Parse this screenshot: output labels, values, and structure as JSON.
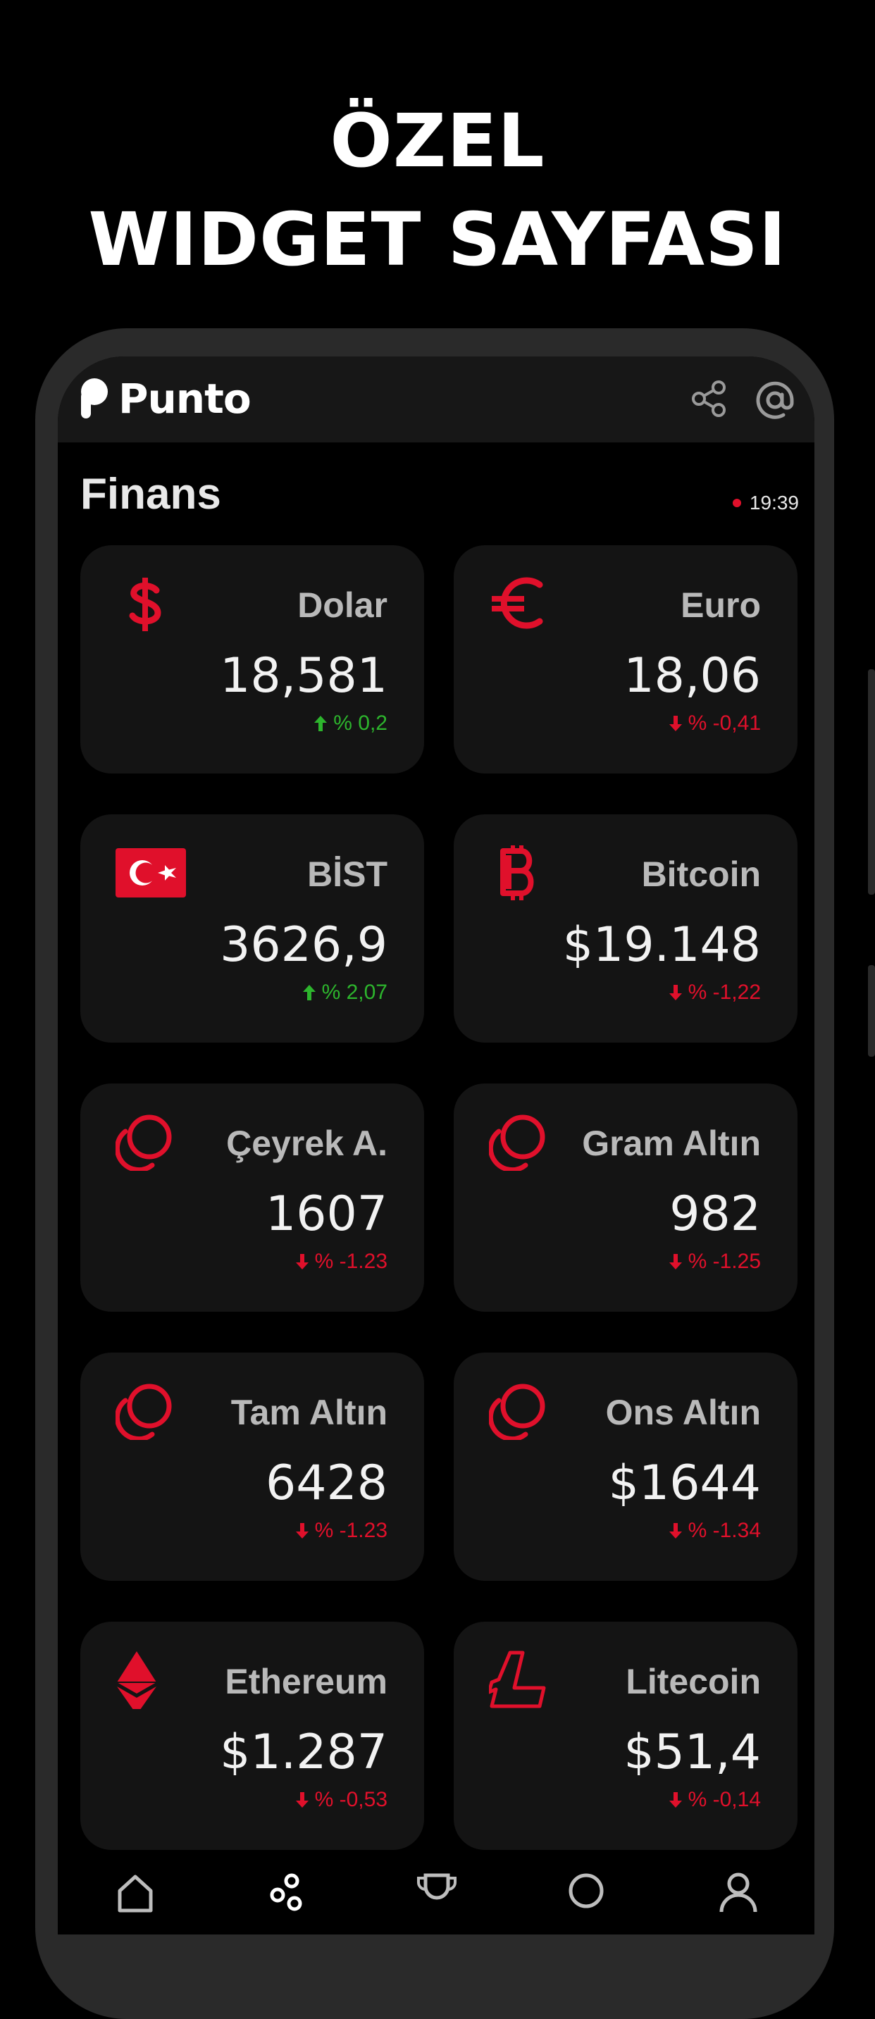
{
  "headline": {
    "line1": "ÖZEL",
    "line2": "WIDGET SAYFASI"
  },
  "app": {
    "name": "Punto",
    "icons": [
      "share-icon",
      "at-sign-icon"
    ]
  },
  "section": {
    "title": "Finans",
    "time": "19:39"
  },
  "colors": {
    "accent": "#e0102b",
    "up": "#2db52d",
    "down": "#e0102b",
    "card_bg": "#141414",
    "label": "#b9b9b9"
  },
  "cards": [
    {
      "name": "Dolar",
      "value": "18,581",
      "change": "% 0,2",
      "direction": "up",
      "icon": "dollar-icon"
    },
    {
      "name": "Euro",
      "value": "18,06",
      "change": "% -0,41",
      "direction": "down",
      "icon": "euro-icon"
    },
    {
      "name": "BİST",
      "value": "3626,9",
      "change": "% 2,07",
      "direction": "up",
      "icon": "turkey-flag-icon"
    },
    {
      "name": "Bitcoin",
      "value": "$19.148",
      "change": "% -1,22",
      "direction": "down",
      "icon": "bitcoin-icon"
    },
    {
      "name": "Çeyrek A.",
      "value": "1607",
      "change": "% -1.23",
      "direction": "down",
      "icon": "gold-coin-icon"
    },
    {
      "name": "Gram Altın",
      "value": "982",
      "change": "% -1.25",
      "direction": "down",
      "icon": "gold-coin-icon"
    },
    {
      "name": "Tam Altın",
      "value": "6428",
      "change": "% -1.23",
      "direction": "down",
      "icon": "gold-coin-icon"
    },
    {
      "name": "Ons Altın",
      "value": "$1644",
      "change": "% -1.34",
      "direction": "down",
      "icon": "gold-coin-icon"
    },
    {
      "name": "Ethereum",
      "value": "$1.287",
      "change": "% -0,53",
      "direction": "down",
      "icon": "ethereum-icon"
    },
    {
      "name": "Litecoin",
      "value": "$51,4",
      "change": "% -0,14",
      "direction": "down",
      "icon": "litecoin-icon"
    }
  ],
  "bottom_nav": {
    "items": [
      "home-icon",
      "widgets-icon",
      "trophy-icon",
      "search-icon",
      "profile-icon"
    ]
  }
}
